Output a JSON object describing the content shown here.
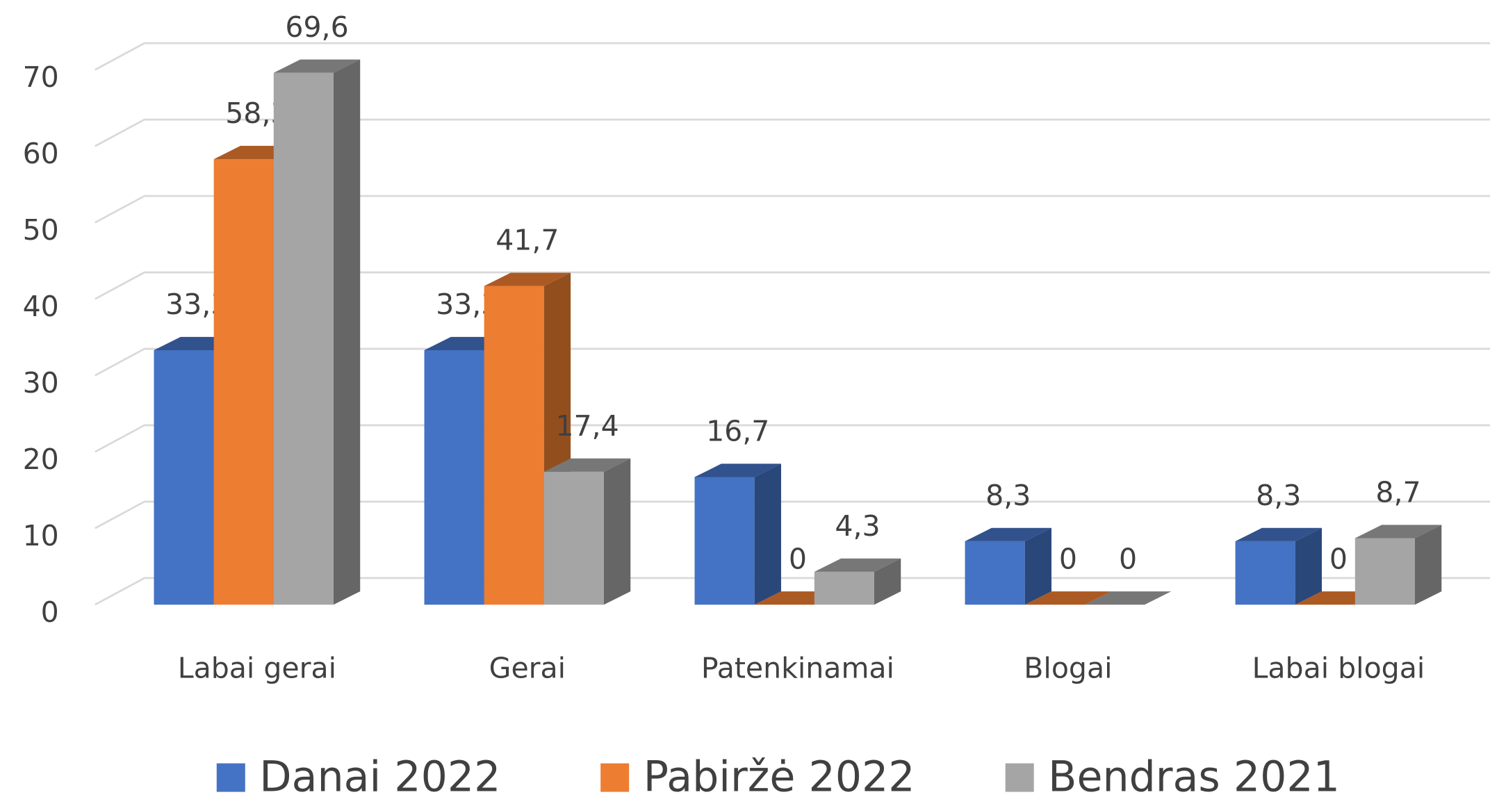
{
  "chart_data": {
    "type": "bar3d",
    "categories": [
      "Labai gerai",
      "Gerai",
      "Patenkinamai",
      "Blogai",
      "Labai blogai"
    ],
    "series": [
      {
        "name": "Danai 2022",
        "color": "#4472c4",
        "values": [
          33.3,
          33.3,
          16.7,
          8.3,
          8.3
        ],
        "value_labels": [
          "33,3",
          "33,3",
          "16,7",
          "8,3",
          "8,3"
        ]
      },
      {
        "name": "Pabiržė 2022",
        "color": "#ed7d31",
        "values": [
          58.3,
          41.7,
          0,
          0,
          0
        ],
        "value_labels": [
          "58,3",
          "41,7",
          "0",
          "0",
          "0"
        ]
      },
      {
        "name": "Bendras 2021",
        "color": "#a5a5a5",
        "values": [
          69.6,
          17.4,
          4.3,
          0,
          8.7
        ],
        "value_labels": [
          "69,6",
          "17,4",
          "4,3",
          "0",
          "8,7"
        ]
      }
    ],
    "ylim": [
      0,
      70
    ],
    "yticks": [
      0,
      10,
      20,
      30,
      40,
      50,
      60,
      70
    ],
    "grid": true,
    "legend": "bottom"
  }
}
